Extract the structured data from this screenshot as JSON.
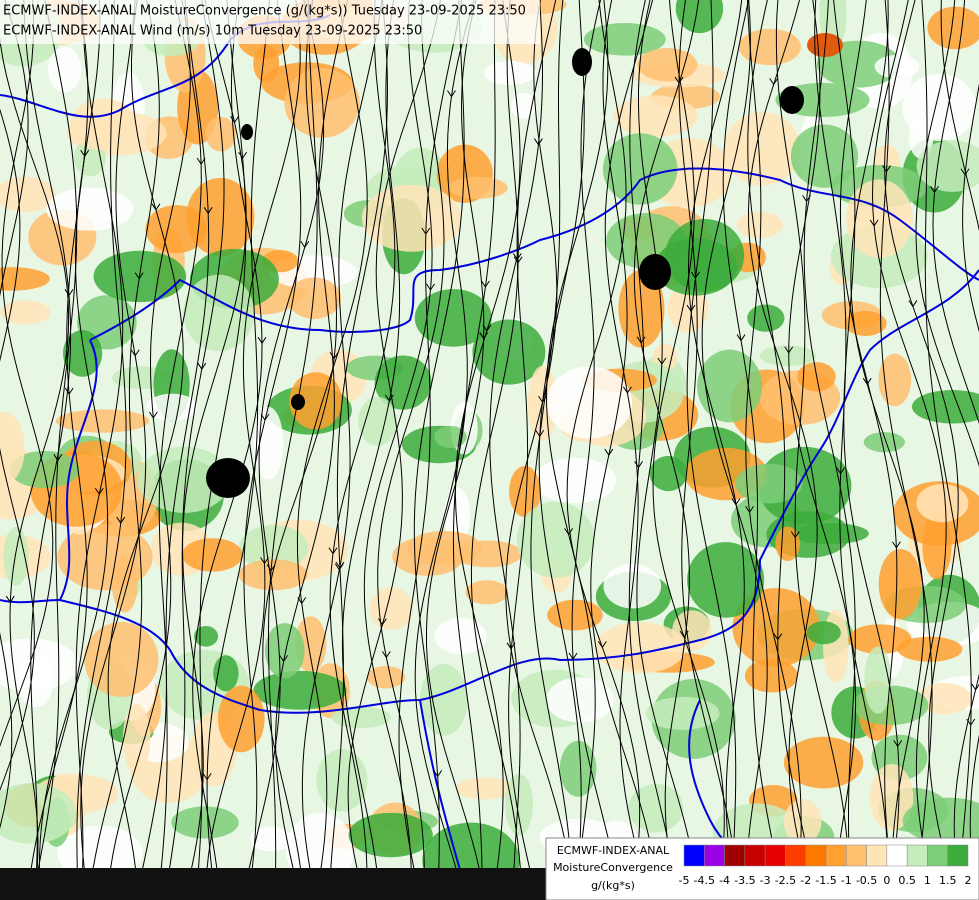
{
  "header": {
    "lines": [
      "ECMWF-INDEX-ANAL MoistureConvergence (g/(kg*s)) Tuesday 23-09-2025 23:50",
      "ECMWF-INDEX-ANAL Wind (m/s) 10m Tuesday 23-09-2025 23:50"
    ]
  },
  "legend": {
    "lines": [
      "ECMWF-INDEX-ANAL",
      "MoistureConvergence",
      "g/(kg*s)"
    ],
    "ticks": [
      -5,
      -4.5,
      -4,
      -3.5,
      -3,
      -2.5,
      -2,
      -1.5,
      -1,
      -0.5,
      0,
      0.5,
      1,
      1.5,
      2
    ],
    "colors": [
      "#0000ff",
      "#9a00e6",
      "#a00000",
      "#c80000",
      "#e60000",
      "#ff3c00",
      "#ff7800",
      "#ffa030",
      "#ffc070",
      "#ffe4b8",
      "#ffffff",
      "#c4ecbc",
      "#7cce78",
      "#3cac3c"
    ]
  }
}
